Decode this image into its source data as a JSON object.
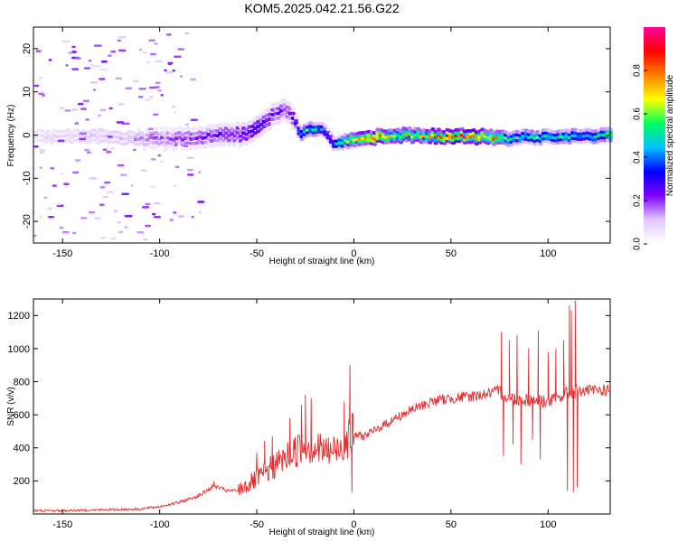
{
  "figure": {
    "title": "KOM5.2025.042.21.56.G22"
  },
  "chart_data": [
    {
      "type": "heatmap",
      "title": "KOM5.2025.042.21.56.G22",
      "xlabel": "Height of straight line (km)",
      "ylabel": "Frequency (Hz)",
      "xlim": [
        -165,
        132
      ],
      "ylim": [
        -25,
        25
      ],
      "xticks": [
        -150,
        -100,
        -50,
        0,
        50,
        100
      ],
      "yticks": [
        -20,
        -10,
        0,
        10,
        20
      ],
      "colorbar": {
        "label": "Normalized spectral amplitude",
        "range": [
          0,
          1
        ],
        "ticks": [
          0.0,
          0.2,
          0.4,
          0.6,
          0.8
        ],
        "tick_labels": [
          "0.0",
          "0.2",
          "0.4",
          "0.6",
          "0.8"
        ],
        "colormap": [
          "#ffffff",
          "#e0c8ff",
          "#8000ff",
          "#0000ff",
          "#00c0ff",
          "#00ff60",
          "#ffff00",
          "#ff8000",
          "#ff0000",
          "#ff00a0"
        ]
      },
      "ridge": {
        "description": "Doppler frequency trace",
        "x": [
          -165,
          -140,
          -120,
          -100,
          -80,
          -70,
          -60,
          -55,
          -50,
          -45,
          -40,
          -35,
          -30,
          -28,
          -25,
          -20,
          -15,
          -10,
          -5,
          0,
          10,
          20,
          30,
          40,
          50,
          60,
          70,
          80,
          90,
          100,
          110,
          120,
          132
        ],
        "y": [
          -0.5,
          -0.3,
          -0.5,
          -1,
          -0.5,
          0,
          0.2,
          0,
          2,
          3.5,
          5,
          6,
          3,
          0.5,
          1,
          1.5,
          1,
          -2,
          -1.5,
          -1,
          -0.5,
          0,
          0,
          -0.2,
          -0.3,
          -0.3,
          -0.5,
          -0.8,
          -0.5,
          -0.3,
          -0.2,
          0,
          -0.2
        ],
        "amplitude": [
          0.08,
          0.1,
          0.12,
          0.18,
          0.2,
          0.25,
          0.25,
          0.28,
          0.3,
          0.28,
          0.25,
          0.2,
          0.3,
          0.45,
          0.55,
          0.5,
          0.35,
          0.4,
          0.6,
          0.75,
          0.8,
          0.7,
          0.65,
          0.75,
          0.85,
          0.85,
          0.8,
          0.5,
          0.55,
          0.5,
          0.55,
          0.45,
          0.6
        ]
      }
    },
    {
      "type": "line",
      "xlabel": "Height of straight line (km)",
      "ylabel": "SNR (v/v)",
      "xlim": [
        -165,
        132
      ],
      "ylim": [
        0,
        1300
      ],
      "xticks": [
        -150,
        -100,
        -50,
        0,
        50,
        100
      ],
      "yticks": [
        200,
        400,
        600,
        800,
        1000,
        1200
      ],
      "series": [
        {
          "name": "SNR",
          "color": "#e8282a",
          "x": [
            -165,
            -150,
            -130,
            -110,
            -100,
            -90,
            -80,
            -72,
            -65,
            -60,
            -50,
            -40,
            -30,
            -25,
            -20,
            -15,
            -10,
            -5,
            -2,
            0,
            5,
            10,
            20,
            30,
            40,
            50,
            60,
            70,
            75,
            80,
            90,
            100,
            105,
            110,
            113,
            115,
            120,
            132
          ],
          "y": [
            20,
            20,
            25,
            30,
            45,
            70,
            110,
            170,
            140,
            140,
            210,
            300,
            380,
            420,
            400,
            380,
            380,
            430,
            480,
            480,
            470,
            500,
            570,
            630,
            680,
            700,
            710,
            730,
            740,
            700,
            690,
            680,
            700,
            730,
            740,
            740,
            745,
            750
          ]
        }
      ],
      "spikes": [
        {
          "x": -72,
          "y": 200
        },
        {
          "x": -50,
          "y": 370
        },
        {
          "x": -46,
          "y": 440
        },
        {
          "x": -42,
          "y": 470
        },
        {
          "x": -33,
          "y": 580
        },
        {
          "x": -27,
          "y": 660
        },
        {
          "x": -25,
          "y": 720
        },
        {
          "x": -22,
          "y": 700
        },
        {
          "x": -5,
          "y": 680
        },
        {
          "x": -2,
          "y": 900
        },
        {
          "x": -1,
          "y": 130
        },
        {
          "x": 76,
          "y": 1100
        },
        {
          "x": 77,
          "y": 350
        },
        {
          "x": 80,
          "y": 1050
        },
        {
          "x": 82,
          "y": 420
        },
        {
          "x": 84,
          "y": 1080
        },
        {
          "x": 86,
          "y": 300
        },
        {
          "x": 90,
          "y": 1000
        },
        {
          "x": 92,
          "y": 450
        },
        {
          "x": 95,
          "y": 1110
        },
        {
          "x": 96,
          "y": 330
        },
        {
          "x": 100,
          "y": 980
        },
        {
          "x": 104,
          "y": 1000
        },
        {
          "x": 108,
          "y": 1050
        },
        {
          "x": 110,
          "y": 140
        },
        {
          "x": 111,
          "y": 1260
        },
        {
          "x": 112,
          "y": 1230
        },
        {
          "x": 113,
          "y": 130
        },
        {
          "x": 114,
          "y": 1290
        },
        {
          "x": 115,
          "y": 160
        }
      ]
    }
  ]
}
